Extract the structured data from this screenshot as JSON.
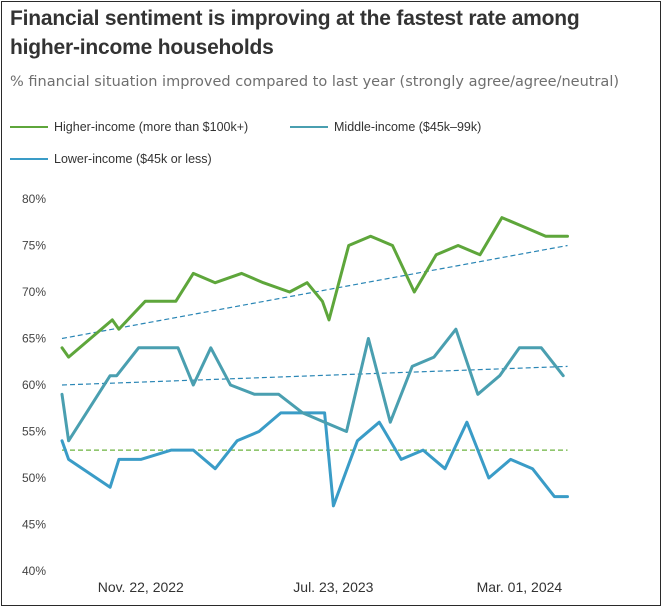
{
  "title": "Financial sentiment is improving at the fastest rate among higher-income households",
  "subtitle": "% financial situation improved compared to last year (strongly agree/agree/neutral)",
  "colors": {
    "higher": "#5ea63b",
    "middle": "#4a9fb0",
    "lower": "#3a9cc7",
    "trend_higher": "#2a86b5",
    "trend_middle": "#2a86b5",
    "trend_lower": "#6cb33f",
    "frame": "#2a2a2a"
  },
  "chart_data": {
    "type": "line",
    "title": "Financial sentiment is improving at the fastest rate among higher-income households",
    "subtitle": "% financial situation improved compared to last year (strongly agree/agree/neutral)",
    "xlabel": "",
    "ylabel": "",
    "ylim": [
      40,
      80
    ],
    "yticks": [
      40,
      45,
      50,
      55,
      60,
      65,
      70,
      75,
      80
    ],
    "ytick_suffix": "%",
    "x_index_range": [
      0,
      26
    ],
    "x_tick_labels": [
      {
        "index": 3.6,
        "label": "Nov. 22, 2022"
      },
      {
        "index": 12.4,
        "label": "Jul. 23, 2023"
      },
      {
        "index": 20.9,
        "label": "Mar. 01, 2024"
      }
    ],
    "grid": false,
    "legend_position": "top",
    "series": [
      {
        "name": "Higher-income (more than $100k+)",
        "color_key": "higher",
        "x": [
          0,
          0.3,
          2.3,
          2.6,
          3.8,
          5.2,
          6.0,
          7.0,
          8.2,
          9.2,
          10.4,
          11.2,
          11.9,
          12.2,
          13.1,
          14.1,
          15.1,
          16.1,
          17.1,
          18.1,
          19.1,
          20.1,
          21.1,
          22.1,
          23.1
        ],
        "values": [
          64,
          63,
          67,
          66,
          69,
          69,
          72,
          71,
          72,
          71,
          70,
          71,
          69,
          67,
          75,
          76,
          75,
          70,
          74,
          75,
          74,
          78,
          77,
          76,
          76
        ]
      },
      {
        "name": "Middle-income ($45k–99k)",
        "color_key": "middle",
        "x": [
          0,
          0.3,
          2.2,
          2.5,
          3.5,
          5.3,
          6.0,
          6.8,
          7.7,
          8.8,
          9.9,
          11.0,
          12.0,
          13.0,
          14.0,
          15.0,
          16.0,
          17.0,
          18.0,
          19.0,
          20.0,
          20.9,
          21.9,
          22.9
        ],
        "values": [
          59,
          54,
          61,
          61,
          64,
          64,
          60,
          64,
          60,
          59,
          59,
          57,
          56,
          55,
          65,
          56,
          62,
          63,
          66,
          59,
          61,
          64,
          64,
          61
        ]
      },
      {
        "name": "Lower-income ($45k or less)",
        "color_key": "lower",
        "x": [
          0,
          0.3,
          2.2,
          2.6,
          3.6,
          5.0,
          6.0,
          7.0,
          8.0,
          9.0,
          10.0,
          11.0,
          12.0,
          12.4,
          13.5,
          14.5,
          15.5,
          16.5,
          17.5,
          18.5,
          19.5,
          20.5,
          21.5,
          22.5,
          23.1
        ],
        "values": [
          54,
          52,
          49,
          52,
          52,
          53,
          53,
          51,
          54,
          55,
          57,
          57,
          57,
          47,
          54,
          56,
          52,
          53,
          51,
          56,
          50,
          52,
          51,
          48,
          48
        ]
      }
    ],
    "trendlines": [
      {
        "series": "Higher-income (more than $100k+)",
        "color_key": "trend_higher",
        "x": [
          0,
          23.1
        ],
        "values": [
          65,
          75
        ]
      },
      {
        "series": "Middle-income ($45k–99k)",
        "color_key": "trend_middle",
        "x": [
          0,
          23.1
        ],
        "values": [
          60,
          62
        ]
      },
      {
        "series": "Lower-income ($45k or less)",
        "color_key": "trend_lower",
        "x": [
          0,
          23.1
        ],
        "values": [
          53,
          53
        ]
      }
    ]
  }
}
